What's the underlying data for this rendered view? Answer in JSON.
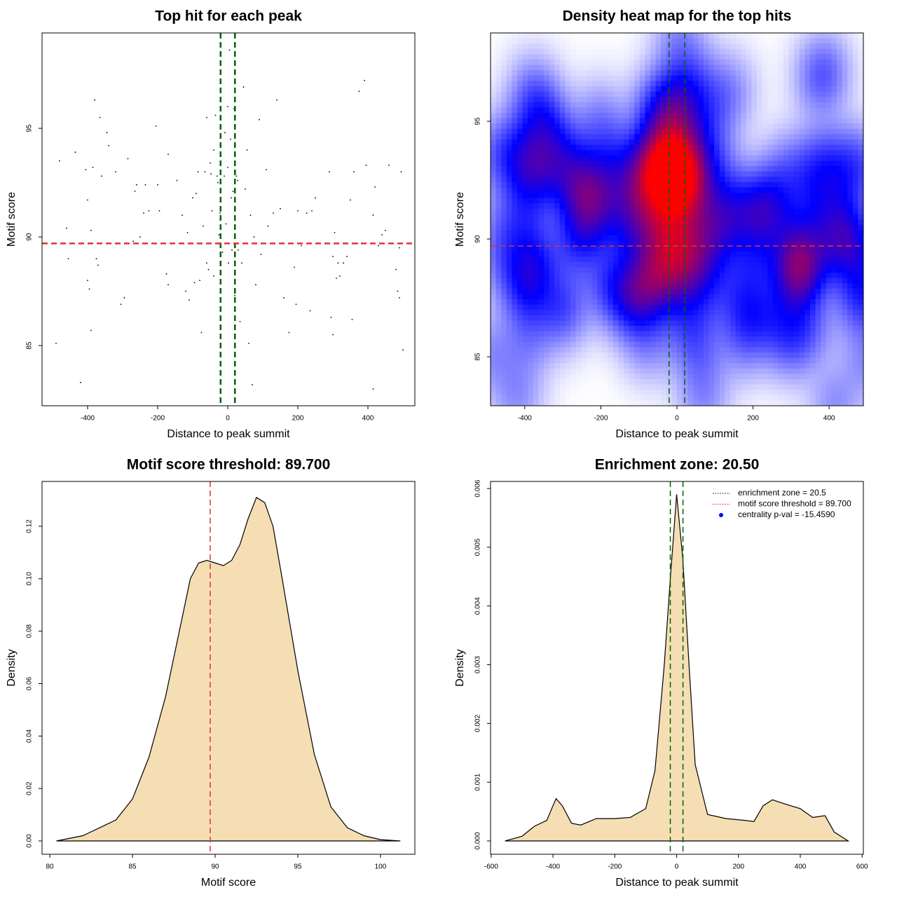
{
  "chart_data": [
    {
      "type": "scatter",
      "title": "Top hit for each peak",
      "x_label": "Distance to peak summit",
      "y_label": "Motif score",
      "xlim": [
        -530,
        534
      ],
      "ylim": [
        82.23,
        99.39
      ],
      "xticks": [
        -400,
        -200,
        0,
        200,
        400
      ],
      "yticks": [
        85,
        90,
        95
      ],
      "color": "#000000",
      "vlines": [
        -20.5,
        20.5
      ],
      "vline_color": "#006400",
      "hline": 89.7,
      "hline_color": "#dd3333",
      "x": [
        -490,
        -480,
        -460,
        -455,
        -435,
        -420,
        -405,
        -400,
        -400,
        -395,
        -390,
        -390,
        -385,
        -380,
        -375,
        -370,
        -365,
        -360,
        -345,
        -340,
        -320,
        -305,
        -295,
        -285,
        -270,
        -265,
        -260,
        -250,
        -240,
        -235,
        -225,
        -205,
        -200,
        -195,
        -175,
        -170,
        -170,
        -145,
        -130,
        -120,
        -115,
        -110,
        -100,
        -95,
        -90,
        -85,
        -80,
        -75,
        -70,
        -65,
        -60,
        -60,
        -55,
        -50,
        -48,
        -45,
        -40,
        -40,
        -35,
        -30,
        -28,
        -25,
        -22,
        -20,
        -15,
        -10,
        -8,
        -5,
        0,
        0,
        2,
        5,
        8,
        10,
        12,
        15,
        18,
        20,
        22,
        25,
        28,
        30,
        35,
        40,
        45,
        50,
        55,
        60,
        65,
        70,
        75,
        80,
        90,
        95,
        110,
        115,
        130,
        140,
        150,
        160,
        175,
        190,
        195,
        200,
        210,
        225,
        235,
        240,
        250,
        290,
        295,
        300,
        300,
        305,
        310,
        315,
        320,
        330,
        340,
        350,
        355,
        360,
        370,
        375,
        390,
        395,
        415,
        415,
        420,
        430,
        440,
        450,
        460,
        480,
        485,
        490,
        495,
        500,
        490
      ],
      "y": [
        85.1,
        93.5,
        90.4,
        89.0,
        93.9,
        83.3,
        93.1,
        91.7,
        88.0,
        87.6,
        90.3,
        85.7,
        93.2,
        96.3,
        89.0,
        88.7,
        95.5,
        92.8,
        94.8,
        94.2,
        93.0,
        86.9,
        87.2,
        93.6,
        89.8,
        92.1,
        92.4,
        90.0,
        91.1,
        92.4,
        91.2,
        95.1,
        92.4,
        91.2,
        88.3,
        87.8,
        93.8,
        92.6,
        91.0,
        87.5,
        90.2,
        87.1,
        91.8,
        87.9,
        92.0,
        93.0,
        88.0,
        85.6,
        90.5,
        93.0,
        95.5,
        88.8,
        88.5,
        93.4,
        92.9,
        91.2,
        94.0,
        88.2,
        95.6,
        92.8,
        92.5,
        90.1,
        91.1,
        93.3,
        89.3,
        92.8,
        94.8,
        90.6,
        96.0,
        93.2,
        88.8,
        98.6,
        94.5,
        91.8,
        89.4,
        92.1,
        95.9,
        87.3,
        93.0,
        92.8,
        92.6,
        89.4,
        86.1,
        88.8,
        96.9,
        92.2,
        94.0,
        85.1,
        91.0,
        83.2,
        90.0,
        87.8,
        95.4,
        89.2,
        93.1,
        90.5,
        91.1,
        96.3,
        91.3,
        87.2,
        85.6,
        88.6,
        86.9,
        91.2,
        89.6,
        91.1,
        86.6,
        91.2,
        91.8,
        93.0,
        86.3,
        89.1,
        85.5,
        90.2,
        88.1,
        88.8,
        88.2,
        88.8,
        89.1,
        91.7,
        86.2,
        93.0,
        89.7,
        96.7,
        97.2,
        93.3,
        83.0,
        91.0,
        92.3,
        89.6,
        90.1,
        90.3,
        93.3,
        88.5,
        87.5,
        87.2,
        93.0,
        84.8,
        89.5
      ]
    },
    {
      "type": "heatmap",
      "title": "Density heat map for the top hits",
      "x_label": "Distance to peak summit",
      "y_label": "Motif score",
      "xlim": [
        -490,
        490
      ],
      "ylim": [
        82.92,
        98.75
      ],
      "xticks": [
        -400,
        -200,
        0,
        200,
        400
      ],
      "yticks": [
        85,
        90,
        95
      ],
      "colors": [
        "#ffffff",
        "#0000ff",
        "#ff0000"
      ],
      "vlines": [
        -20.5,
        20.5
      ],
      "vline_color": "#006400",
      "hline": 89.7,
      "hline_color": "#dd3333"
    },
    {
      "type": "density",
      "title": "Motif score threshold: 89.700",
      "x_label": "Motif score",
      "y_label": "Density",
      "xlim": [
        79.53,
        102.08
      ],
      "ylim": [
        -0.00508,
        0.1371
      ],
      "xticks": [
        80,
        85,
        90,
        95,
        100
      ],
      "yticks": [
        {
          "value": 0,
          "label": "0.00"
        },
        {
          "value": 0.02,
          "label": "0.02"
        },
        {
          "value": 0.04,
          "label": "0.04"
        },
        {
          "value": 0.06,
          "label": "0.06"
        },
        {
          "value": 0.08,
          "label": "0.08"
        },
        {
          "value": 0.1,
          "label": "0.10"
        },
        {
          "value": 0.12,
          "label": "0.12"
        }
      ],
      "color": "#f5deb3",
      "vlines": [
        89.7
      ],
      "vline_color": "#dd3333",
      "x": [
        80.4,
        82,
        83,
        84,
        85,
        86,
        87,
        88,
        88.5,
        89,
        89.5,
        90,
        90.5,
        91,
        91.5,
        92,
        92.5,
        93,
        93.5,
        94,
        95,
        96,
        97,
        98,
        99,
        100,
        101.2
      ],
      "y": [
        0,
        0.002,
        0.005,
        0.008,
        0.016,
        0.032,
        0.055,
        0.085,
        0.1,
        0.106,
        0.107,
        0.106,
        0.105,
        0.107,
        0.113,
        0.123,
        0.131,
        0.129,
        0.12,
        0.102,
        0.065,
        0.033,
        0.013,
        0.005,
        0.002,
        0.0005,
        0
      ]
    },
    {
      "type": "density",
      "title": "Enrichment zone: 20.50",
      "x_label": "Distance to peak summit",
      "y_label": "Density",
      "xlim": [
        -602,
        604
      ],
      "ylim": [
        -0.000227,
        0.00612
      ],
      "xticks": [
        -600,
        -400,
        -200,
        0,
        200,
        400,
        600
      ],
      "yticks": [
        {
          "value": 0,
          "label": "0.000"
        },
        {
          "value": 0.001,
          "label": "0.001"
        },
        {
          "value": 0.002,
          "label": "0.002"
        },
        {
          "value": 0.003,
          "label": "0.003"
        },
        {
          "value": 0.004,
          "label": "0.004"
        },
        {
          "value": 0.005,
          "label": "0.005"
        },
        {
          "value": 0.006,
          "label": "0.006"
        }
      ],
      "color": "#f5deb3",
      "vlines": [
        -20.5,
        20.5
      ],
      "vline_color": "#006400",
      "x": [
        -555,
        -500,
        -460,
        -420,
        -400,
        -390,
        -370,
        -340,
        -310,
        -260,
        -200,
        -150,
        -100,
        -70,
        -40,
        -20,
        0,
        20,
        40,
        60,
        100,
        160,
        220,
        250,
        280,
        310,
        350,
        400,
        440,
        480,
        510,
        555
      ],
      "y": [
        0,
        8e-05,
        0.00025,
        0.00035,
        0.0006,
        0.00072,
        0.0006,
        0.0003,
        0.00027,
        0.00038,
        0.00038,
        0.0004,
        0.00055,
        0.0012,
        0.003,
        0.0045,
        0.0059,
        0.0048,
        0.003,
        0.0013,
        0.00045,
        0.00038,
        0.00035,
        0.00033,
        0.0006,
        0.0007,
        0.00063,
        0.00055,
        0.0004,
        0.00043,
        0.00015,
        0
      ],
      "legend_position": "topright",
      "legend": [
        {
          "label": "enrichment zone = 20.5",
          "color": "#006400",
          "style": "dotted"
        },
        {
          "label": "motif score threshold = 89.700",
          "color": "#dd3333",
          "style": "dotted"
        },
        {
          "label": "centrality p-val = -15.4590",
          "color": "#0000ff",
          "style": "point"
        }
      ]
    }
  ]
}
